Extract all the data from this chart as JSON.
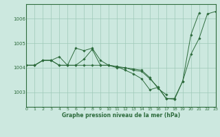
{
  "title": "Graphe pression niveau de la mer (hPa)",
  "xlim": [
    0,
    23
  ],
  "xticks": [
    0,
    1,
    2,
    3,
    4,
    5,
    6,
    7,
    8,
    9,
    10,
    11,
    12,
    13,
    14,
    15,
    16,
    17,
    18,
    19,
    20,
    21,
    22,
    23
  ],
  "ylim": [
    1002.4,
    1006.6
  ],
  "yticks": [
    1003,
    1004,
    1005,
    1006
  ],
  "bg_color": "#cce8df",
  "grid_color": "#9ec9b8",
  "line_color": "#2d6b3c",
  "marker_color": "#2d6b3c",
  "series": [
    {
      "x": [
        0,
        1,
        2,
        3,
        4,
        5,
        6,
        7,
        8,
        9,
        10,
        11,
        12,
        13,
        14,
        15,
        16,
        17,
        18,
        19,
        20,
        21,
        22,
        23
      ],
      "y": [
        1004.1,
        1004.1,
        1004.3,
        1004.3,
        1004.1,
        1004.1,
        1004.8,
        1004.7,
        1004.8,
        1004.3,
        1004.1,
        1004.0,
        1004.0,
        1003.9,
        1003.85,
        1003.55,
        1003.2,
        1002.75,
        1002.7,
        1003.45,
        1004.55,
        1005.2,
        1006.2,
        1006.3
      ]
    },
    {
      "x": [
        0,
        1,
        2,
        3,
        4,
        5,
        6,
        7,
        8,
        9,
        10,
        11,
        12,
        13,
        14,
        15,
        16,
        17,
        18,
        19,
        20,
        21
      ],
      "y": [
        1004.1,
        1004.1,
        1004.3,
        1004.3,
        1004.45,
        1004.1,
        1004.1,
        1004.35,
        1004.75,
        1004.1,
        1004.1,
        1004.05,
        1003.9,
        1003.75,
        1003.55,
        1003.1,
        1003.2,
        1002.73,
        1002.75,
        1003.45,
        1005.35,
        1006.25
      ]
    },
    {
      "x": [
        0,
        1,
        2,
        3,
        4,
        5,
        6,
        7,
        8,
        9,
        10,
        11,
        12,
        13,
        14,
        15,
        16,
        17
      ],
      "y": [
        1004.1,
        1004.1,
        1004.3,
        1004.3,
        1004.1,
        1004.1,
        1004.1,
        1004.1,
        1004.1,
        1004.1,
        1004.1,
        1004.05,
        1004.0,
        1003.95,
        1003.9,
        1003.6,
        1003.15,
        1002.9
      ]
    }
  ],
  "figsize": [
    3.2,
    2.0
  ],
  "dpi": 100
}
